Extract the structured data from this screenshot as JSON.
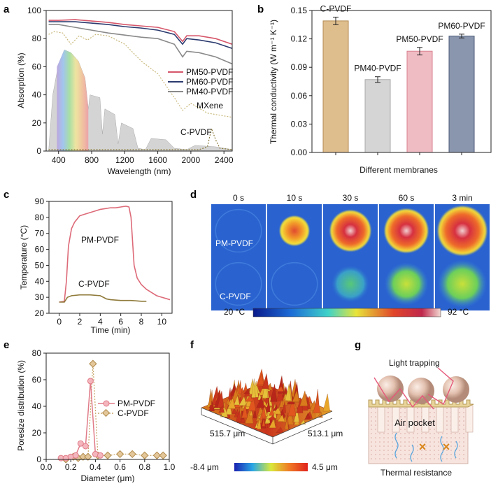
{
  "panels": {
    "a": {
      "letter": "a",
      "xlabel": "Wavelength (nm)",
      "ylabel": "Absorption (%)",
      "xticks": [
        "400",
        "800",
        "1200",
        "1600",
        "2000",
        "2400"
      ],
      "yticks": [
        "0",
        "20",
        "40",
        "60",
        "80",
        "100"
      ],
      "legend": [
        "PM50-PVDF",
        "PM60-PVDF",
        "PM40-PVDF"
      ],
      "labels": {
        "mxene": "MXene",
        "cpvdf": "C-PVDF"
      },
      "colors": {
        "pm50": "#d6566a",
        "pm60": "#2b3a6e",
        "pm40": "#8a8a8a",
        "mxene": "#c8b87a",
        "cpvdf": "#8a7a3a"
      }
    },
    "b": {
      "letter": "b",
      "xlabel": "Different membranes",
      "ylabel": "Thermal conductivity (W m⁻¹ K⁻¹)",
      "yticks": [
        "0.00",
        "0.03",
        "0.06",
        "0.09",
        "0.12",
        "0.15"
      ]
    },
    "c": {
      "letter": "c",
      "xlabel": "Time (min)",
      "ylabel": "Temperature (°C)",
      "xticks": [
        "0",
        "2",
        "4",
        "6",
        "8",
        "10"
      ],
      "yticks": [
        "20",
        "30",
        "40",
        "50",
        "60",
        "70",
        "80",
        "90"
      ],
      "labels": {
        "pm": "PM-PVDF",
        "c": "C-PVDF"
      }
    },
    "d": {
      "letter": "d",
      "times": [
        "0 s",
        "10 s",
        "30 s",
        "60 s",
        "3 min"
      ],
      "rows": [
        "PM-PVDF",
        "C-PVDF"
      ],
      "scale_min": "20 °C",
      "scale_max": "92 °C"
    },
    "e": {
      "letter": "e",
      "xlabel": "Diameter (μm)",
      "ylabel": "Poresize distribution (%)",
      "xticks": [
        "0.0",
        "0.2",
        "0.4",
        "0.6",
        "0.8",
        "1.0"
      ],
      "yticks": [
        "0",
        "20",
        "40",
        "60",
        "80"
      ],
      "legend": [
        "PM-PVDF",
        "C-PVDF"
      ]
    },
    "f": {
      "letter": "f",
      "dim1": "515.7 μm",
      "dim2": "513.1 μm",
      "scale_min": "-8.4 μm",
      "scale_max": "4.5 μm"
    },
    "g": {
      "letter": "g",
      "top": "Light trapping",
      "mid": "Air pocket",
      "bottom": "Thermal resistance"
    }
  },
  "chart_data": [
    {
      "type": "line",
      "panel": "a",
      "xlim": [
        250,
        2500
      ],
      "ylim": [
        0,
        100
      ],
      "series": [
        {
          "name": "PM50-PVDF",
          "x": [
            280,
            400,
            600,
            800,
            1000,
            1200,
            1400,
            1600,
            1800,
            1900,
            1950,
            2100,
            2300,
            2500
          ],
          "y": [
            93,
            93,
            93.5,
            92.5,
            91.5,
            90,
            89,
            88,
            85,
            78,
            82,
            82,
            80,
            76
          ]
        },
        {
          "name": "PM60-PVDF",
          "x": [
            280,
            400,
            600,
            800,
            1000,
            1200,
            1400,
            1600,
            1800,
            1900,
            1950,
            2100,
            2300,
            2500
          ],
          "y": [
            92,
            92,
            92,
            91,
            90,
            88.5,
            87.5,
            86,
            83,
            76,
            80,
            79,
            77,
            73
          ]
        },
        {
          "name": "PM40-PVDF",
          "x": [
            280,
            400,
            600,
            800,
            1000,
            1200,
            1400,
            1600,
            1800,
            1900,
            1950,
            2100,
            2300,
            2500
          ],
          "y": [
            90,
            90,
            88,
            86,
            84,
            82.5,
            81,
            80,
            76,
            67,
            71,
            70,
            67,
            62
          ]
        },
        {
          "name": "MXene",
          "x": [
            280,
            350,
            450,
            550,
            650,
            750,
            850,
            1000,
            1200,
            1400,
            1600,
            1800,
            1900,
            2000,
            2200,
            2500
          ],
          "y": [
            83,
            85,
            84,
            76,
            82,
            79,
            83,
            82,
            76,
            64,
            55,
            38,
            29,
            34,
            27,
            24
          ]
        },
        {
          "name": "C-PVDF",
          "x": [
            280,
            1000,
            1600,
            2100,
            2200,
            2250,
            2300,
            2350,
            2500
          ],
          "y": [
            1,
            1,
            1,
            1,
            3,
            16,
            8,
            2,
            1
          ]
        }
      ]
    },
    {
      "type": "bar",
      "panel": "b",
      "categories": [
        "C-PVDF",
        "PM40-PVDF",
        "PM50-PVDF",
        "PM60-PVDF"
      ],
      "values": [
        0.139,
        0.077,
        0.107,
        0.123
      ],
      "errors": [
        0.004,
        0.003,
        0.004,
        0.002
      ],
      "ylim": [
        0,
        0.15
      ]
    },
    {
      "type": "line",
      "panel": "c",
      "xlim": [
        -1,
        11
      ],
      "ylim": [
        20,
        90
      ],
      "series": [
        {
          "name": "PM-PVDF",
          "x": [
            0,
            0.5,
            0.7,
            0.9,
            1.2,
            1.5,
            2,
            2.5,
            3,
            3.5,
            4,
            4.5,
            5,
            5.5,
            6,
            6.5,
            6.8,
            7,
            7.3,
            7.6,
            8,
            8.5,
            9,
            9.5,
            10,
            10.8
          ],
          "y": [
            27,
            27.5,
            40,
            62,
            73,
            77,
            81,
            82,
            83,
            84,
            85,
            85.5,
            86,
            86,
            86.5,
            87,
            86.5,
            80,
            50,
            42,
            38,
            35,
            33,
            31,
            30,
            28.5
          ]
        },
        {
          "name": "C-PVDF",
          "x": [
            0,
            0.5,
            0.8,
            1.2,
            2,
            3,
            4,
            4.3,
            4.6,
            5,
            6,
            7,
            8,
            8.5
          ],
          "y": [
            27,
            27,
            30,
            31,
            31.5,
            31.5,
            31,
            30,
            29,
            28.5,
            28,
            28,
            27.5,
            27.5
          ]
        }
      ]
    },
    {
      "type": "scatter",
      "panel": "e",
      "xlim": [
        0,
        1
      ],
      "ylim": [
        0,
        80
      ],
      "series": [
        {
          "name": "PM-PVDF",
          "x": [
            0.12,
            0.16,
            0.2,
            0.24,
            0.28,
            0.32,
            0.36,
            0.4,
            0.44
          ],
          "y": [
            1,
            1,
            2,
            3,
            12,
            10,
            59,
            4,
            3
          ]
        },
        {
          "name": "C-PVDF",
          "x": [
            0.16,
            0.22,
            0.26,
            0.3,
            0.34,
            0.38,
            0.42,
            0.5,
            0.6,
            0.7,
            0.8,
            0.9,
            0.95
          ],
          "y": [
            0,
            2,
            1,
            2,
            2,
            72,
            3,
            3,
            4,
            4,
            3,
            3,
            3
          ]
        }
      ]
    }
  ]
}
